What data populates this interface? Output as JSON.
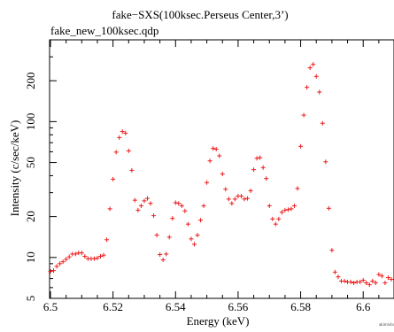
{
  "chart_data": {
    "type": "scatter",
    "title": "fake−SXS(100ksec.Perseus Center,3’)",
    "subtitle": "fake_new_100ksec.qdp",
    "xlabel": "Energy (keV)",
    "ylabel": "Intensity (c/sec/keV)",
    "credit": "akimisho",
    "xlim": [
      6.5,
      6.609
    ],
    "ylim": [
      5,
      400
    ],
    "yscale": "log",
    "xticks": [
      6.5,
      6.52,
      6.54,
      6.56,
      6.58,
      6.6
    ],
    "xtick_labels": [
      "6.5",
      "6.52",
      "6.54",
      "6.56",
      "6.58",
      "6.6"
    ],
    "yticks": [
      5,
      10,
      20,
      50,
      100,
      200
    ],
    "ytick_labels": [
      "5",
      "10",
      "20",
      "50",
      "100",
      "200"
    ],
    "grid": false,
    "color": "#ee1c1c",
    "series": [
      {
        "points": [
          [
            6.5,
            7.9
          ],
          [
            6.501,
            8.0
          ],
          [
            6.502,
            8.6
          ],
          [
            6.503,
            9.0
          ],
          [
            6.504,
            9.3
          ],
          [
            6.505,
            9.7
          ],
          [
            6.506,
            10.1
          ],
          [
            6.507,
            10.6
          ],
          [
            6.508,
            10.6
          ],
          [
            6.509,
            10.8
          ],
          [
            6.51,
            10.8
          ],
          [
            6.511,
            10.2
          ],
          [
            6.512,
            9.8
          ],
          [
            6.513,
            9.8
          ],
          [
            6.514,
            9.8
          ],
          [
            6.515,
            9.9
          ],
          [
            6.516,
            10.2
          ],
          [
            6.517,
            10.4
          ],
          [
            6.518,
            13.5
          ],
          [
            6.519,
            22.8
          ],
          [
            6.52,
            37.7
          ],
          [
            6.521,
            59.6
          ],
          [
            6.522,
            76.3
          ],
          [
            6.523,
            84.5
          ],
          [
            6.524,
            82.2
          ],
          [
            6.525,
            60.9
          ],
          [
            6.526,
            43.8
          ],
          [
            6.527,
            26.4
          ],
          [
            6.528,
            22.3
          ],
          [
            6.529,
            24.0
          ],
          [
            6.53,
            26.1
          ],
          [
            6.531,
            27.2
          ],
          [
            6.532,
            25.0
          ],
          [
            6.533,
            20.3
          ],
          [
            6.534,
            14.6
          ],
          [
            6.535,
            10.5
          ],
          [
            6.536,
            9.6
          ],
          [
            6.537,
            10.6
          ],
          [
            6.538,
            14.1
          ],
          [
            6.539,
            19.4
          ],
          [
            6.54,
            25.3
          ],
          [
            6.541,
            25.0
          ],
          [
            6.542,
            24.0
          ],
          [
            6.543,
            22.0
          ],
          [
            6.544,
            17.6
          ],
          [
            6.545,
            13.7
          ],
          [
            6.546,
            12.5
          ],
          [
            6.547,
            14.6
          ],
          [
            6.548,
            18.8
          ],
          [
            6.549,
            24.0
          ],
          [
            6.55,
            35.6
          ],
          [
            6.551,
            51.4
          ],
          [
            6.552,
            63.5
          ],
          [
            6.553,
            62.7
          ],
          [
            6.554,
            56.0
          ],
          [
            6.555,
            41.2
          ],
          [
            6.556,
            31.8
          ],
          [
            6.557,
            26.9
          ],
          [
            6.558,
            25.0
          ],
          [
            6.559,
            26.9
          ],
          [
            6.56,
            28.3
          ],
          [
            6.561,
            28.3
          ],
          [
            6.562,
            26.9
          ],
          [
            6.563,
            27.2
          ],
          [
            6.564,
            31.0
          ],
          [
            6.565,
            44.3
          ],
          [
            6.566,
            53.7
          ],
          [
            6.567,
            54.3
          ],
          [
            6.568,
            45.9
          ],
          [
            6.569,
            38.1
          ],
          [
            6.57,
            24.0
          ],
          [
            6.571,
            19.2
          ],
          [
            6.572,
            17.6
          ],
          [
            6.573,
            19.2
          ],
          [
            6.574,
            21.5
          ],
          [
            6.575,
            22.3
          ],
          [
            6.576,
            22.5
          ],
          [
            6.577,
            22.8
          ],
          [
            6.578,
            24.0
          ],
          [
            6.579,
            32.2
          ],
          [
            6.58,
            65.8
          ],
          [
            6.581,
            111.6
          ],
          [
            6.582,
            178.8
          ],
          [
            6.583,
            248.9
          ],
          [
            6.584,
            263.9
          ],
          [
            6.585,
            215.2
          ],
          [
            6.586,
            165.0
          ],
          [
            6.587,
            97.3
          ],
          [
            6.588,
            50.6
          ],
          [
            6.589,
            23.0
          ],
          [
            6.59,
            11.3
          ],
          [
            6.591,
            7.8
          ],
          [
            6.592,
            7.2
          ],
          [
            6.593,
            6.7
          ],
          [
            6.594,
            6.7
          ],
          [
            6.595,
            6.6
          ],
          [
            6.596,
            6.6
          ],
          [
            6.597,
            6.5
          ],
          [
            6.598,
            6.6
          ],
          [
            6.599,
            6.6
          ],
          [
            6.6,
            6.8
          ],
          [
            6.601,
            6.5
          ],
          [
            6.602,
            6.3
          ],
          [
            6.603,
            6.7
          ],
          [
            6.604,
            6.5
          ],
          [
            6.605,
            7.5
          ],
          [
            6.606,
            7.3
          ],
          [
            6.607,
            6.5
          ],
          [
            6.608,
            7.1
          ],
          [
            6.609,
            6.9
          ]
        ]
      }
    ]
  }
}
